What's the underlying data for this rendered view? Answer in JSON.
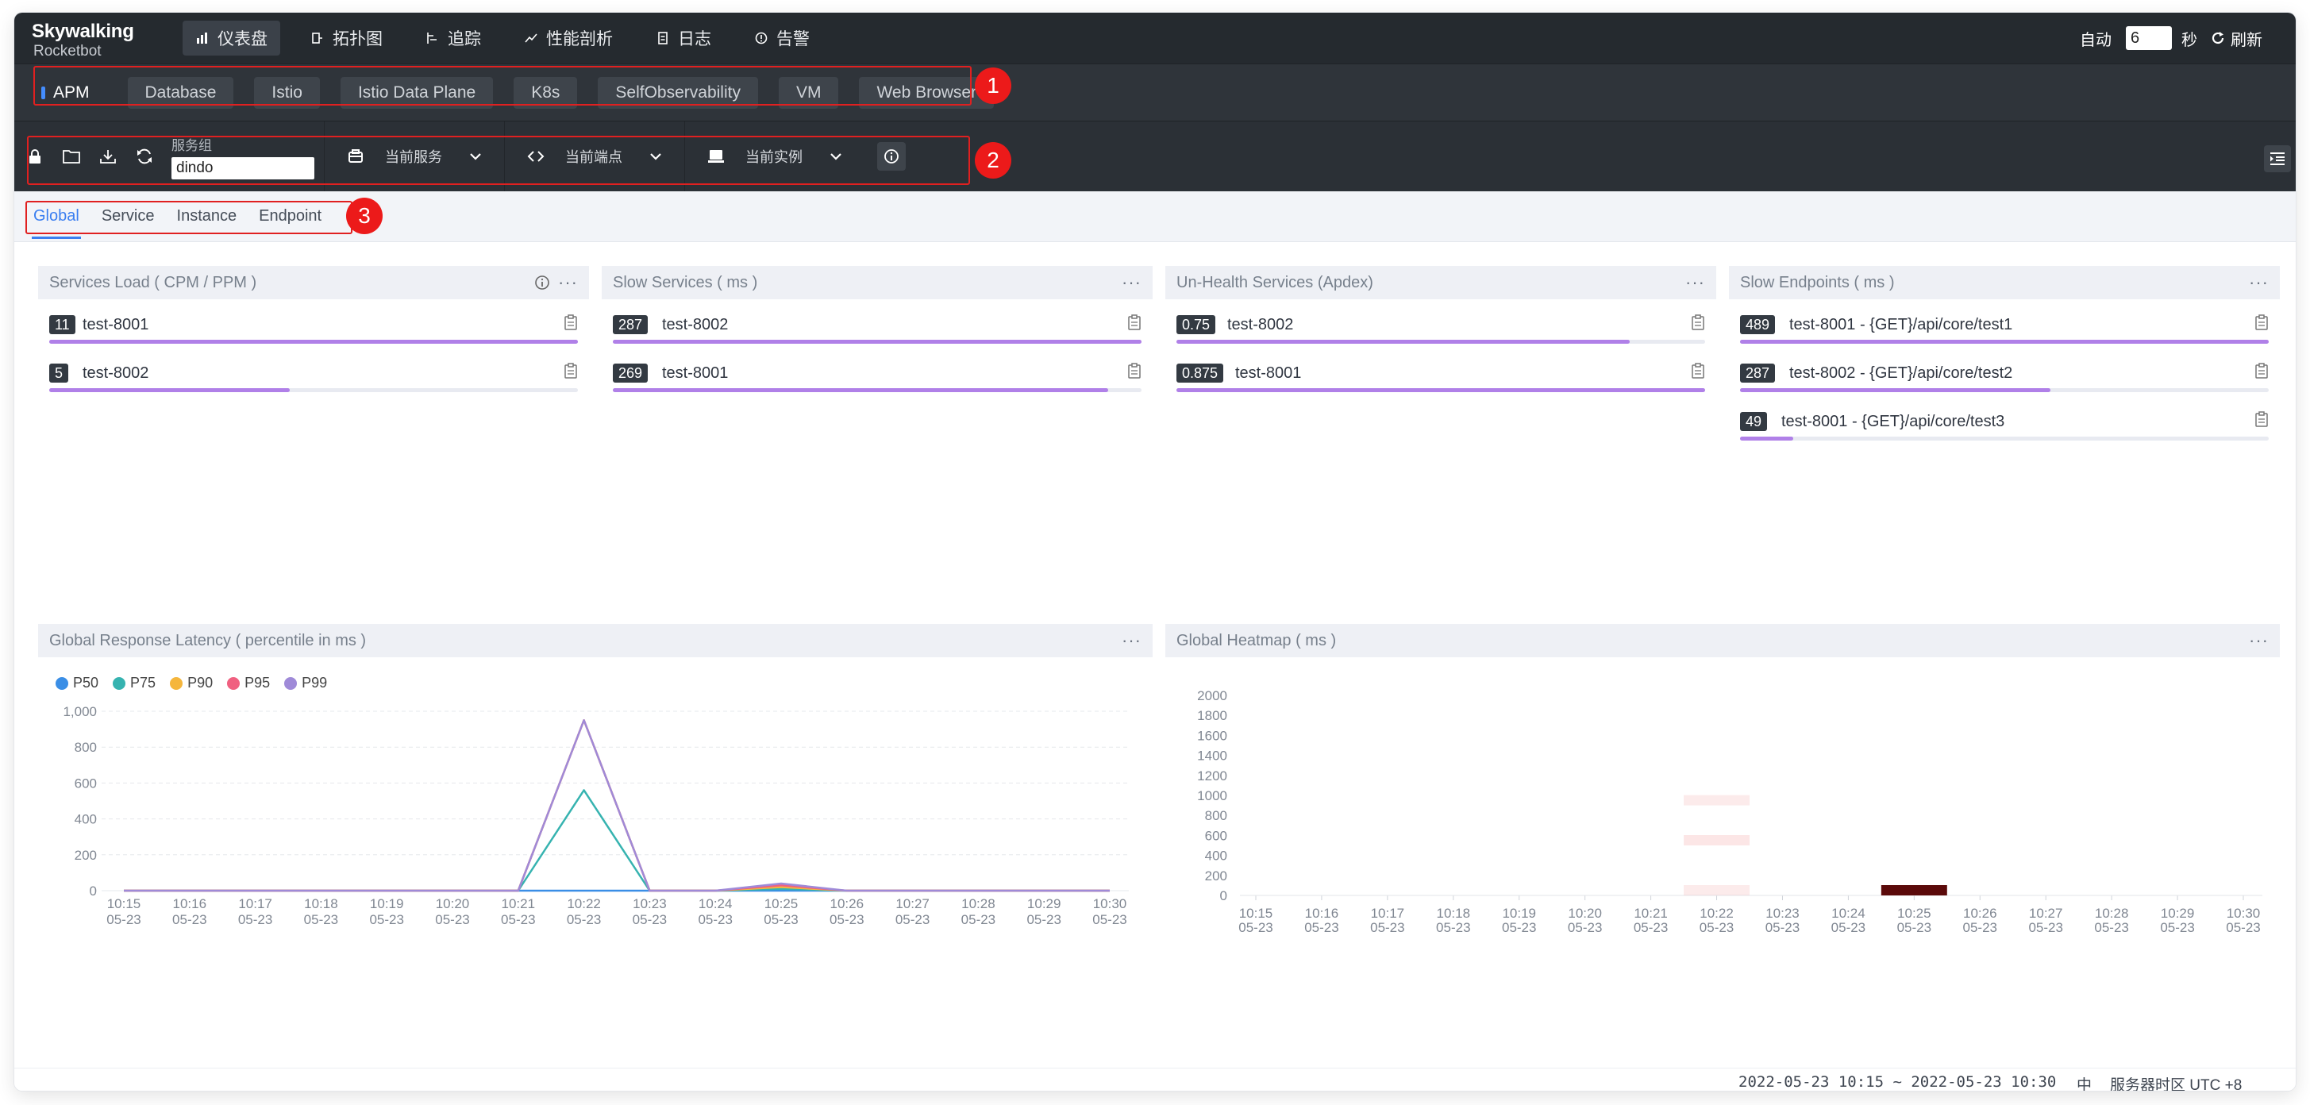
{
  "app": {
    "logo_line1": "Skywalking",
    "logo_line2": "Rocketbot"
  },
  "nav": [
    {
      "label": "仪表盘",
      "icon": "dashboard-icon"
    },
    {
      "label": "拓扑图",
      "icon": "topology-icon"
    },
    {
      "label": "追踪",
      "icon": "trace-icon"
    },
    {
      "label": "性能剖析",
      "icon": "profile-icon"
    },
    {
      "label": "日志",
      "icon": "log-icon"
    },
    {
      "label": "告警",
      "icon": "alarm-icon"
    }
  ],
  "auto": {
    "label": "自动",
    "interval": "6",
    "unit": "秒",
    "refresh_label": "刷新"
  },
  "layers": [
    "APM",
    "Database",
    "Istio",
    "Istio Data Plane",
    "K8s",
    "SelfObservability",
    "VM",
    "Web Browser"
  ],
  "toolbar": {
    "group_label": "服务组",
    "group_value": "dindo",
    "service_label": "当前服务",
    "endpoint_label": "当前端点",
    "instance_label": "当前实例"
  },
  "tabs": [
    "Global",
    "Service",
    "Instance",
    "Endpoint"
  ],
  "widgets": {
    "services_load": {
      "title": "Services Load ( CPM / PPM )",
      "rows": [
        {
          "value": "11",
          "name": "test-8001",
          "fraction": 1.0
        },
        {
          "value": "5",
          "name": "test-8002",
          "fraction": 0.455
        }
      ]
    },
    "slow_services": {
      "title": "Slow Services ( ms )",
      "rows": [
        {
          "value": "287",
          "name": "test-8002",
          "fraction": 1.0
        },
        {
          "value": "269",
          "name": "test-8001",
          "fraction": 0.937
        }
      ]
    },
    "unhealth_services": {
      "title": "Un-Health Services (Apdex)",
      "rows": [
        {
          "value": "0.75",
          "name": "test-8002",
          "fraction": 0.857
        },
        {
          "value": "0.875",
          "name": "test-8001",
          "fraction": 1.0
        }
      ]
    },
    "slow_endpoints": {
      "title": "Slow Endpoints ( ms )",
      "rows": [
        {
          "value": "489",
          "name": "test-8001 - {GET}/api/core/test1",
          "fraction": 1.0
        },
        {
          "value": "287",
          "name": "test-8002 - {GET}/api/core/test2",
          "fraction": 0.587
        },
        {
          "value": "49",
          "name": "test-8001 - {GET}/api/core/test3",
          "fraction": 0.1
        }
      ]
    },
    "latency": {
      "title": "Global Response Latency ( percentile in ms )"
    },
    "heatmap": {
      "title": "Global Heatmap ( ms )"
    }
  },
  "chart_data": [
    {
      "type": "line",
      "title": "Global Response Latency ( percentile in ms )",
      "x": [
        "10:15\n05-23",
        "10:16\n05-23",
        "10:17\n05-23",
        "10:18\n05-23",
        "10:19\n05-23",
        "10:20\n05-23",
        "10:21\n05-23",
        "10:22\n05-23",
        "10:23\n05-23",
        "10:24\n05-23",
        "10:25\n05-23",
        "10:26\n05-23",
        "10:27\n05-23",
        "10:28\n05-23",
        "10:29\n05-23",
        "10:30\n05-23"
      ],
      "y_ticks": [
        "0",
        "200",
        "400",
        "600",
        "800",
        "1,000"
      ],
      "ylim": [
        0,
        1000
      ],
      "grid": true,
      "legend": "top-left",
      "series": [
        {
          "name": "P50",
          "color": "#3a8ee6",
          "values": [
            0,
            0,
            0,
            0,
            0,
            0,
            0,
            0,
            0,
            0,
            0,
            0,
            0,
            0,
            0,
            0
          ]
        },
        {
          "name": "P75",
          "color": "#36b3b0",
          "values": [
            0,
            0,
            0,
            0,
            0,
            0,
            0,
            560,
            0,
            0,
            10,
            0,
            0,
            0,
            0,
            0
          ]
        },
        {
          "name": "P90",
          "color": "#f5b63c",
          "values": [
            0,
            0,
            0,
            0,
            0,
            0,
            0,
            950,
            0,
            0,
            20,
            0,
            0,
            0,
            0,
            0
          ]
        },
        {
          "name": "P95",
          "color": "#f06080",
          "values": [
            0,
            0,
            0,
            0,
            0,
            0,
            0,
            950,
            0,
            0,
            30,
            0,
            0,
            0,
            0,
            0
          ]
        },
        {
          "name": "P99",
          "color": "#9f8ad8",
          "values": [
            0,
            0,
            0,
            0,
            0,
            0,
            0,
            950,
            0,
            0,
            40,
            0,
            0,
            0,
            0,
            0
          ]
        }
      ]
    },
    {
      "type": "heatmap",
      "title": "Global Heatmap ( ms )",
      "x": [
        "10:15\n05-23",
        "10:16\n05-23",
        "10:17\n05-23",
        "10:18\n05-23",
        "10:19\n05-23",
        "10:20\n05-23",
        "10:21\n05-23",
        "10:22\n05-23",
        "10:23\n05-23",
        "10:24\n05-23",
        "10:25\n05-23",
        "10:26\n05-23",
        "10:27\n05-23",
        "10:28\n05-23",
        "10:29\n05-23",
        "10:30\n05-23"
      ],
      "y_ticks": [
        "0",
        "200",
        "400",
        "600",
        "800",
        "1000",
        "1200",
        "1400",
        "1600",
        "1800",
        "2000"
      ],
      "cells": [
        {
          "x": "10:22",
          "y": 0,
          "intensity": 0.08
        },
        {
          "x": "10:22",
          "y": 500,
          "intensity": 0.1
        },
        {
          "x": "10:22",
          "y": 900,
          "intensity": 0.08
        },
        {
          "x": "10:25",
          "y": 0,
          "intensity": 1.0
        }
      ]
    }
  ],
  "footer": {
    "range": "2022-05-23 10:15 ~ 2022-05-23 10:30",
    "lang": "中",
    "timezone": "服务器时区 UTC +8"
  },
  "annotations": [
    "1",
    "2",
    "3"
  ]
}
